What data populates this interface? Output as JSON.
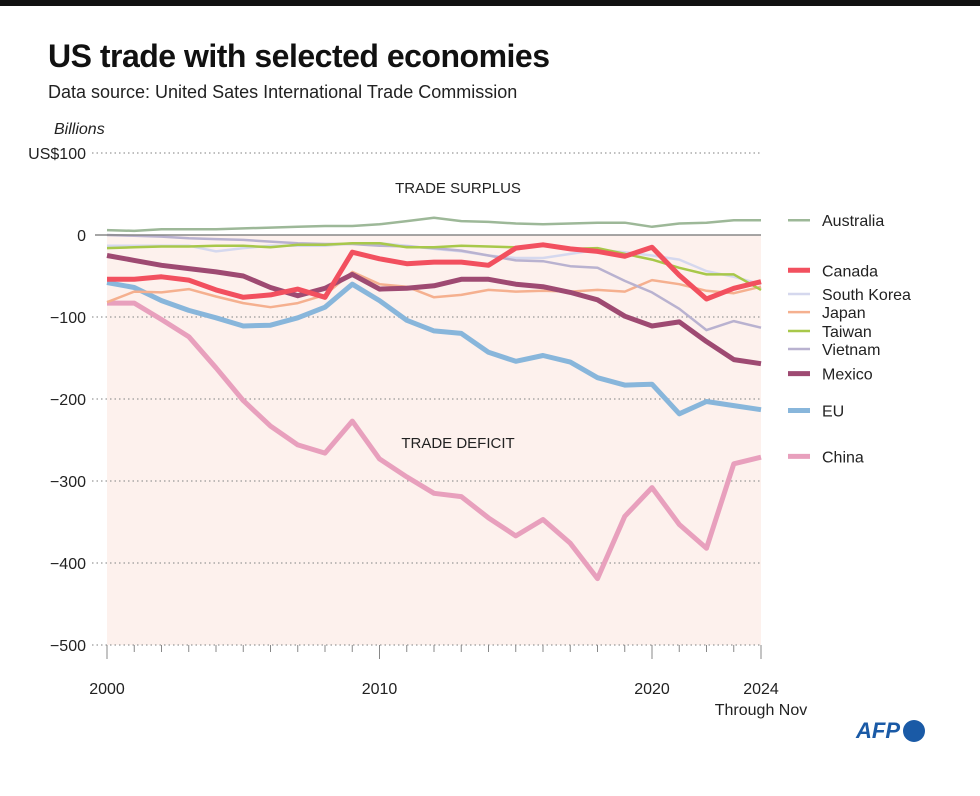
{
  "title": "US trade with selected economies",
  "subtitle": "Data source: United Sates International Trade Commission",
  "logo": "AFP",
  "chart_data": {
    "type": "line",
    "ylabel": "Billions",
    "ylim": [
      -500,
      100
    ],
    "yticks": [
      100,
      0,
      -100,
      -200,
      -300,
      -400,
      -500
    ],
    "ytick_labels": [
      "US$100",
      "0",
      "−100",
      "−200",
      "−300",
      "−400",
      "−500"
    ],
    "xlim": [
      2000,
      2024
    ],
    "xtick_labels": [
      "2000",
      "2010",
      "2020",
      "2024"
    ],
    "xnote": "Through Nov",
    "annotations": [
      "TRADE SURPLUS",
      "TRADE DEFICIT"
    ],
    "grid": true,
    "legend": "right",
    "x": [
      2000,
      2001,
      2002,
      2003,
      2004,
      2005,
      2006,
      2007,
      2008,
      2009,
      2010,
      2011,
      2012,
      2013,
      2014,
      2015,
      2016,
      2017,
      2018,
      2019,
      2020,
      2021,
      2022,
      2023,
      2024
    ],
    "series": [
      {
        "name": "Australia",
        "color": "#9db898",
        "width": 2.5,
        "values": [
          6,
          5,
          7,
          7,
          7,
          8,
          9,
          10,
          11,
          11,
          13,
          17,
          21,
          17,
          16,
          14,
          13,
          14,
          15,
          15,
          10,
          14,
          15,
          18,
          18
        ]
      },
      {
        "name": "Canada",
        "color": "#f2505f",
        "width": 5,
        "values": [
          -54,
          -54,
          -51,
          -55,
          -67,
          -76,
          -73,
          -66,
          -76,
          -21,
          -29,
          -35,
          -33,
          -33,
          -37,
          -16,
          -12,
          -17,
          -20,
          -26,
          -15,
          -49,
          -78,
          -65,
          -57
        ]
      },
      {
        "name": "South Korea",
        "color": "#d5d8ee",
        "width": 2.5,
        "values": [
          -13,
          -13,
          -13,
          -13,
          -20,
          -16,
          -13,
          -13,
          -13,
          -10,
          -10,
          -13,
          -17,
          -20,
          -25,
          -28,
          -28,
          -23,
          -18,
          -21,
          -25,
          -30,
          -44,
          -51,
          -60
        ]
      },
      {
        "name": "Japan",
        "color": "#f5b08f",
        "width": 2.5,
        "values": [
          -82,
          -69,
          -70,
          -66,
          -75,
          -83,
          -88,
          -83,
          -73,
          -45,
          -60,
          -63,
          -76,
          -73,
          -67,
          -69,
          -68,
          -69,
          -67,
          -69,
          -55,
          -60,
          -68,
          -71,
          -63
        ]
      },
      {
        "name": "Taiwan",
        "color": "#a8c84a",
        "width": 2.5,
        "values": [
          -16,
          -15,
          -14,
          -14,
          -13,
          -13,
          -15,
          -12,
          -12,
          -10,
          -10,
          -15,
          -15,
          -13,
          -14,
          -15,
          -13,
          -17,
          -16,
          -23,
          -30,
          -40,
          -48,
          -48,
          -67
        ]
      },
      {
        "name": "Vietnam",
        "color": "#b9b2d0",
        "width": 2.5,
        "values": [
          0,
          -1,
          -2,
          -4,
          -5,
          -6,
          -8,
          -10,
          -11,
          -11,
          -13,
          -14,
          -16,
          -19,
          -25,
          -31,
          -32,
          -38,
          -40,
          -56,
          -70,
          -90,
          -116,
          -105,
          -113
        ]
      },
      {
        "name": "Mexico",
        "color": "#9e4a72",
        "width": 5,
        "values": [
          -25,
          -31,
          -37,
          -41,
          -45,
          -50,
          -64,
          -74,
          -65,
          -48,
          -66,
          -65,
          -62,
          -54,
          -54,
          -60,
          -63,
          -70,
          -79,
          -99,
          -111,
          -106,
          -130,
          -152,
          -157
        ]
      },
      {
        "name": "EU",
        "color": "#88b6db",
        "width": 5,
        "values": [
          -58,
          -64,
          -80,
          -92,
          -101,
          -111,
          -110,
          -101,
          -88,
          -60,
          -80,
          -104,
          -117,
          -120,
          -143,
          -154,
          -147,
          -155,
          -174,
          -183,
          -182,
          -218,
          -203,
          -208,
          -213
        ]
      },
      {
        "name": "China",
        "color": "#e8a0bd",
        "width": 5,
        "values": [
          -83,
          -83,
          -103,
          -124,
          -162,
          -202,
          -233,
          -256,
          -266,
          -227,
          -273,
          -295,
          -315,
          -319,
          -345,
          -367,
          -347,
          -376,
          -419,
          -343,
          -308,
          -353,
          -382,
          -279,
          -271
        ]
      }
    ],
    "legend_values": [
      18,
      -43,
      -72,
      -94,
      -117,
      -139,
      -169,
      -214,
      -270
    ]
  }
}
